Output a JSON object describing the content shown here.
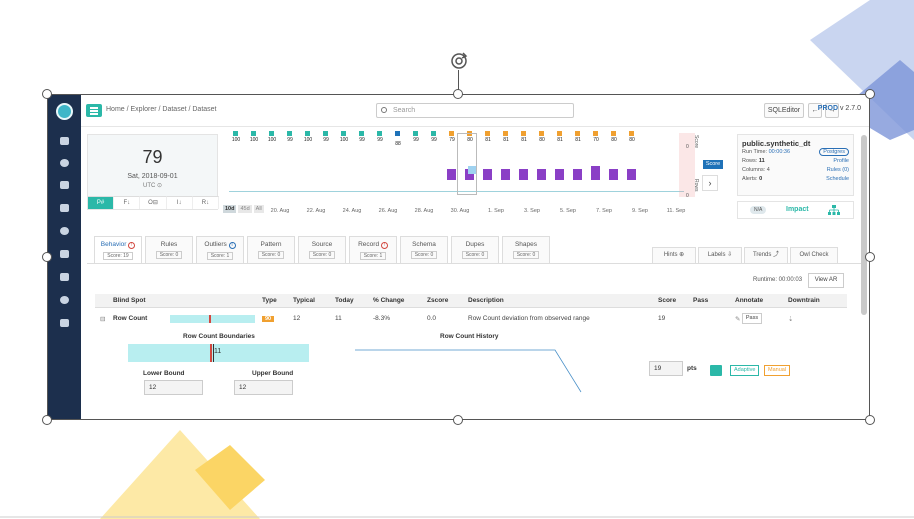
{
  "crumbs": "Home / Explorer / Dataset / Dataset",
  "search": {
    "placeholder": "Search"
  },
  "topbar": {
    "sqleditor": "SQLEditor",
    "back": "←",
    "forward": "→",
    "env": "PROD",
    "version": "v 2.7.0"
  },
  "scorecard": {
    "score": "79",
    "date": "Sat, 2018-09-01",
    "tz": "UTC ⊙",
    "modes": [
      "P#",
      "F↓",
      "O⊟",
      "I↓",
      "R↓"
    ]
  },
  "timeline": {
    "scores": [
      "100",
      "100",
      "100",
      "99",
      "100",
      "99",
      "100",
      "99",
      "99",
      "88",
      "99",
      "99",
      "79",
      "80",
      "81",
      "81",
      "81",
      "80",
      "81",
      "81",
      "70",
      "80",
      "80"
    ],
    "colors": [
      "#2bb8a8",
      "#2bb8a8",
      "#2bb8a8",
      "#2bb8a8",
      "#2bb8a8",
      "#2bb8a8",
      "#2bb8a8",
      "#2bb8a8",
      "#2bb8a8",
      "#1f72b8",
      "#2bb8a8",
      "#2bb8a8",
      "#f0a030",
      "#f0a030",
      "#f0a030",
      "#f0a030",
      "#f0a030",
      "#f0a030",
      "#f0a030",
      "#f0a030",
      "#f0a030",
      "#f0a030",
      "#f0a030"
    ],
    "dates": [
      "20. Aug",
      "22. Aug",
      "24. Aug",
      "26. Aug",
      "28. Aug",
      "30. Aug",
      "1. Sep",
      "3. Sep",
      "5. Sep",
      "7. Sep",
      "9. Sep",
      "11. Sep"
    ],
    "ranges": [
      "10d",
      "45d",
      "All"
    ],
    "score_label": "Score",
    "rows_label": "Rows",
    "zero1": "0",
    "zero2": "0",
    "badge": "Score"
  },
  "dataset": {
    "name": "public.synthetic_dt",
    "run_time_label": "Run Time:",
    "run_time": "00:00:36",
    "rows_label": "Rows:",
    "rows": "11",
    "columns_label": "Columns:",
    "columns": "4",
    "alerts_label": "Alerts:",
    "alerts": "0",
    "db": "Postgres",
    "profile": "Profile",
    "rules": "Rules (0)",
    "schedule": "Schedule"
  },
  "impact": {
    "na": "N/A",
    "label": "Impact"
  },
  "tabs": [
    {
      "label": "Behavior",
      "score": "Score: 19",
      "alert": "!"
    },
    {
      "label": "Rules",
      "score": "Score: 0"
    },
    {
      "label": "Outliers",
      "score": "Score: 1",
      "alert": "i"
    },
    {
      "label": "Pattern",
      "score": "Score: 0"
    },
    {
      "label": "Source",
      "score": "Score: 0"
    },
    {
      "label": "Record",
      "score": "Score: 1",
      "alert": "!"
    },
    {
      "label": "Schema",
      "score": "Score: 0"
    },
    {
      "label": "Dupes",
      "score": "Score: 0"
    },
    {
      "label": "Shapes",
      "score": "Score: 0"
    }
  ],
  "rtabs": [
    "Hints ⊕",
    "Labels ⇩",
    "Trends ⤴",
    "Owl Check"
  ],
  "runtime": "Runtime: 00:00:03",
  "view_ar": "View AR",
  "table": {
    "headers": [
      "Blind Spot",
      "Type",
      "Typical",
      "Today",
      "% Change",
      "Zscore",
      "Description",
      "Score",
      "Pass",
      "Annotate",
      "Downtrain"
    ],
    "row": {
      "toggle": "⊟",
      "name": "Row Count",
      "type": "90",
      "typical": "12",
      "today": "11",
      "change": "-8.3%",
      "zscore": "0.0",
      "desc": "Row Count deviation from observed range",
      "score": "19",
      "pass": "Pass",
      "annotate": "✎",
      "downtrain": "⇣"
    }
  },
  "detail": {
    "boundaries_title": "Row Count Boundaries",
    "bar_value": "11",
    "history_title": "Row Count History",
    "lower_label": "Lower Bound",
    "lower": "12",
    "upper_label": "Upper Bound",
    "upper": "12",
    "pts_value": "19",
    "pts": "pts",
    "adaptive": "Adaptive",
    "manual": "Manual"
  }
}
